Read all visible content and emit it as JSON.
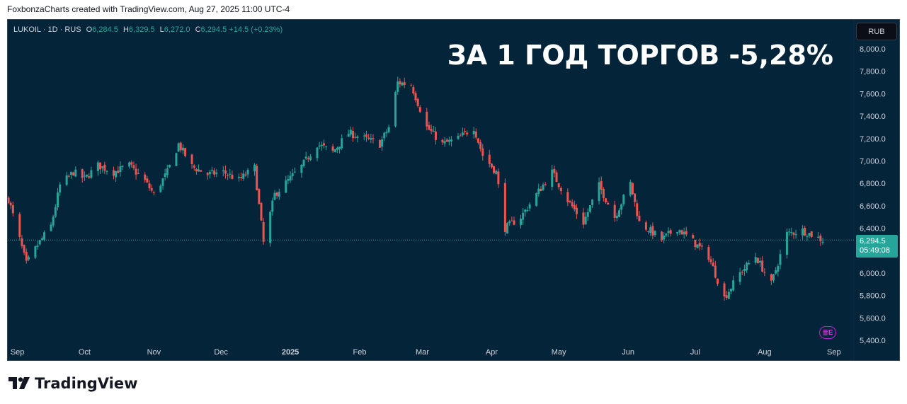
{
  "credit": "FoxbonzaCharts created with TradingView.com, Aug 27, 2025 11:00 UTC-4",
  "legend": {
    "symbol": "LUKOIL · 1D · RUS",
    "open_label": "O",
    "open": "6,284.5",
    "high_label": "H",
    "high": "6,329.5",
    "low_label": "L",
    "low": "6,272.0",
    "close_label": "C",
    "close": "6,294.5",
    "change": "+14.5 (+0.23%)"
  },
  "headline": "ЗА 1 ГОД ТОРГОВ -5,28%",
  "currency_button": "RUB",
  "price_tag": {
    "price": "6,294.5",
    "countdown": "05:49:08"
  },
  "event_icon": "earnings-E-icon",
  "brand": "TradingView",
  "colors": {
    "up": "#26a69a",
    "down": "#ef5350",
    "background": "#04243a",
    "headline": "#ffffff"
  },
  "chart_data": {
    "type": "candlestick",
    "title": "",
    "xlabel": "",
    "ylabel": "",
    "ylim": [
      5400,
      8100
    ],
    "y_ticks": [
      "8,000.0",
      "7,800.0",
      "7,600.0",
      "7,400.0",
      "7,200.0",
      "7,000.0",
      "6,800.0",
      "6,600.0",
      "6,400.0",
      "6,200.0",
      "6,000.0",
      "5,800.0",
      "5,600.0",
      "5,400.0"
    ],
    "x_ticks": [
      "Sep",
      "Oct",
      "Nov",
      "Dec",
      "2025",
      "Feb",
      "Mar",
      "Apr",
      "May",
      "Jun",
      "Jul",
      "Aug",
      "Sep"
    ],
    "current_price": 6294.5,
    "grid": false,
    "close_series_approx": [
      [
        "2024-08-28",
        6660
      ],
      [
        "2024-09-02",
        6300
      ],
      [
        "2024-09-05",
        6080
      ],
      [
        "2024-09-10",
        6250
      ],
      [
        "2024-09-16",
        6420
      ],
      [
        "2024-09-20",
        6780
      ],
      [
        "2024-09-26",
        6900
      ],
      [
        "2024-10-01",
        6840
      ],
      [
        "2024-10-07",
        6960
      ],
      [
        "2024-10-14",
        6900
      ],
      [
        "2024-10-21",
        6960
      ],
      [
        "2024-10-28",
        6820
      ],
      [
        "2024-11-01",
        6700
      ],
      [
        "2024-11-07",
        6900
      ],
      [
        "2024-11-12",
        7150
      ],
      [
        "2024-11-18",
        6950
      ],
      [
        "2024-11-25",
        6880
      ],
      [
        "2024-12-02",
        6900
      ],
      [
        "2024-12-09",
        6830
      ],
      [
        "2024-12-16",
        6940
      ],
      [
        "2024-12-20",
        6270
      ],
      [
        "2024-12-25",
        6700
      ],
      [
        "2025-01-06",
        6950
      ],
      [
        "2025-01-13",
        7150
      ],
      [
        "2025-01-20",
        7080
      ],
      [
        "2025-01-27",
        7250
      ],
      [
        "2025-02-03",
        7200
      ],
      [
        "2025-02-10",
        7150
      ],
      [
        "2025-02-14",
        7300
      ],
      [
        "2025-02-18",
        7700
      ],
      [
        "2025-02-24",
        7680
      ],
      [
        "2025-03-03",
        7300
      ],
      [
        "2025-03-10",
        7150
      ],
      [
        "2025-03-17",
        7200
      ],
      [
        "2025-03-24",
        7300
      ],
      [
        "2025-03-28",
        7050
      ],
      [
        "2025-04-03",
        6900
      ],
      [
        "2025-04-07",
        6400
      ],
      [
        "2025-04-14",
        6500
      ],
      [
        "2025-04-21",
        6700
      ],
      [
        "2025-04-28",
        6900
      ],
      [
        "2025-05-05",
        6650
      ],
      [
        "2025-05-12",
        6450
      ],
      [
        "2025-05-19",
        6780
      ],
      [
        "2025-05-26",
        6500
      ],
      [
        "2025-06-02",
        6800
      ],
      [
        "2025-06-06",
        6450
      ],
      [
        "2025-06-16",
        6300
      ],
      [
        "2025-06-23",
        6400
      ],
      [
        "2025-06-30",
        6280
      ],
      [
        "2025-07-07",
        6150
      ],
      [
        "2025-07-14",
        5780
      ],
      [
        "2025-07-21",
        6000
      ],
      [
        "2025-07-28",
        6150
      ],
      [
        "2025-08-04",
        5900
      ],
      [
        "2025-08-11",
        6350
      ],
      [
        "2025-08-18",
        6380
      ],
      [
        "2025-08-27",
        6294.5
      ]
    ]
  }
}
